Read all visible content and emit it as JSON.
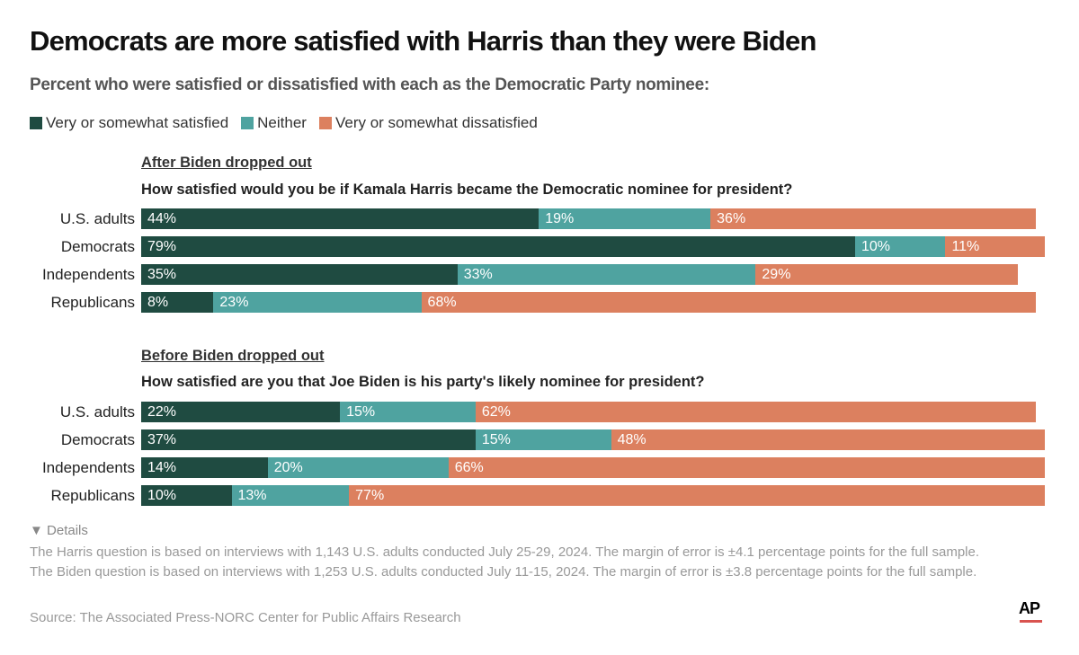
{
  "title": "Democrats are more satisfied with Harris than they were Biden",
  "subtitle": "Percent who were satisfied or dissatisfied with each as the Democratic Party nominee:",
  "legend": [
    {
      "label": "Very or somewhat satisfied",
      "color": "#1f4b41"
    },
    {
      "label": "Neither",
      "color": "#4fa3a0"
    },
    {
      "label": "Very or somewhat dissatisfied",
      "color": "#dc805f"
    }
  ],
  "chart_data": [
    {
      "type": "bar",
      "orientation": "horizontal",
      "stacked": true,
      "title": "After Biden dropped out",
      "question": "How satisfied would you be if Kamala Harris became the Democratic nominee for president?",
      "categories": [
        "U.S. adults",
        "Democrats",
        "Independents",
        "Republicans"
      ],
      "series": [
        {
          "name": "Very or somewhat satisfied",
          "values": [
            44,
            79,
            35,
            8
          ]
        },
        {
          "name": "Neither",
          "values": [
            19,
            10,
            33,
            23
          ]
        },
        {
          "name": "Very or somewhat dissatisfied",
          "values": [
            36,
            11,
            29,
            68
          ]
        }
      ]
    },
    {
      "type": "bar",
      "orientation": "horizontal",
      "stacked": true,
      "title": "Before Biden dropped out",
      "question": "How satisfied are you that Joe Biden is his party's likely nominee for president?",
      "categories": [
        "U.S. adults",
        "Democrats",
        "Independents",
        "Republicans"
      ],
      "series": [
        {
          "name": "Very or somewhat satisfied",
          "values": [
            22,
            37,
            14,
            10
          ]
        },
        {
          "name": "Neither",
          "values": [
            15,
            15,
            20,
            13
          ]
        },
        {
          "name": "Very or somewhat dissatisfied",
          "values": [
            62,
            48,
            66,
            77
          ]
        }
      ]
    }
  ],
  "details_label": "▼ Details",
  "note": "The Harris question is based on interviews with 1,143 U.S. adults conducted July 25-29, 2024. The margin of error is ±4.1 percentage points for the full sample. The Biden question is based on interviews with 1,253 U.S. adults conducted July 11-15, 2024. The margin of error is ±3.8 percentage points for the full sample.",
  "source": "Source: The Associated Press-NORC Center for Public Affairs Research",
  "logo": "AP"
}
